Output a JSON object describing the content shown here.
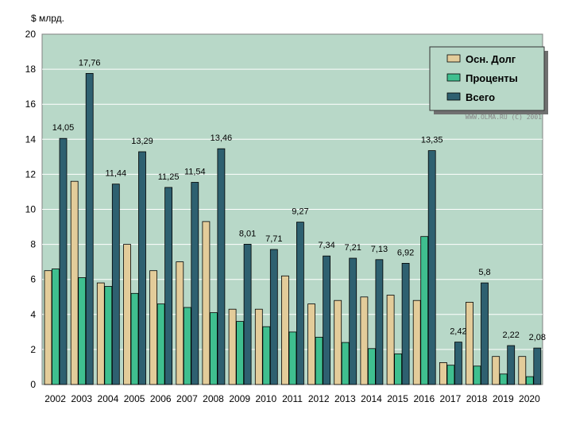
{
  "chart_data": {
    "type": "bar",
    "title": "",
    "ylabel": "$ млрд.",
    "xlabel": "",
    "ylim": [
      0,
      20
    ],
    "yticks": [
      "0",
      "2",
      "4",
      "6",
      "8",
      "10",
      "12",
      "14",
      "16",
      "18",
      "20"
    ],
    "categories": [
      "2002",
      "2003",
      "2004",
      "2005",
      "2006",
      "2007",
      "2008",
      "2009",
      "2010",
      "2011",
      "2012",
      "2013",
      "2014",
      "2015",
      "2016",
      "2017",
      "2018",
      "2019",
      "2020"
    ],
    "series": [
      {
        "name": "Осн. Долг",
        "color": "#e3cc9a",
        "values": [
          6.5,
          11.6,
          5.8,
          8.0,
          6.5,
          7.0,
          9.3,
          4.3,
          4.3,
          6.2,
          4.6,
          4.8,
          5.0,
          5.1,
          4.8,
          1.25,
          4.7,
          1.6,
          1.6
        ]
      },
      {
        "name": "Проценты",
        "color": "#3fbf8f",
        "values": [
          6.6,
          6.1,
          5.6,
          5.2,
          4.6,
          4.4,
          4.1,
          3.6,
          3.3,
          3.0,
          2.7,
          2.4,
          2.05,
          1.75,
          8.45,
          1.1,
          1.05,
          0.6,
          0.45
        ]
      },
      {
        "name": "Всего",
        "color": "#2e6070",
        "values": [
          14.05,
          17.76,
          11.44,
          13.29,
          11.25,
          11.54,
          13.46,
          8.01,
          7.71,
          9.27,
          7.34,
          7.21,
          7.13,
          6.92,
          13.35,
          2.42,
          5.8,
          2.22,
          2.08
        ]
      }
    ],
    "total_labels": [
      "14,05",
      "17,76",
      "11,44",
      "13,29",
      "11,25",
      "11,54",
      "13,46",
      "8,01",
      "7,71",
      "9,27",
      "7,34",
      "7,21",
      "7,13",
      "6,92",
      "13,35",
      "2,42",
      "5,8",
      "2,22",
      "2,08"
    ],
    "legend": "top-right",
    "credit": "WWW.OLMA.RU (C) 2001",
    "colors": {
      "plot_bg": "#b8d8c8",
      "grid": "#ffffff",
      "legend_bg": "#b8d8c8"
    }
  }
}
